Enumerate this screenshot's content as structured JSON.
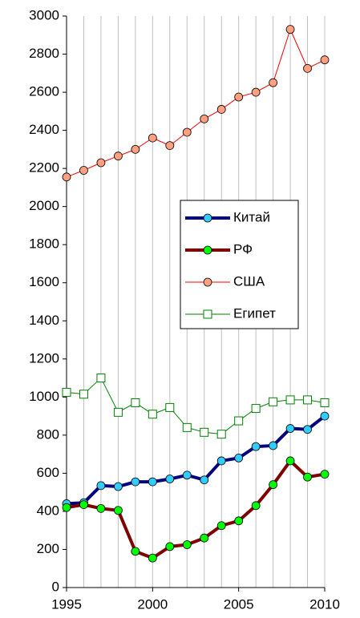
{
  "chart_data": {
    "type": "line",
    "x": [
      1995,
      1996,
      1997,
      1998,
      1999,
      2000,
      2001,
      2002,
      2003,
      2004,
      2005,
      2006,
      2007,
      2008,
      2009,
      2010
    ],
    "xlim": [
      1995,
      2010
    ],
    "xticks": [
      1995,
      2000,
      2005,
      2010
    ],
    "ylim": [
      0,
      3000
    ],
    "yticks": [
      0,
      200,
      400,
      600,
      800,
      1000,
      1200,
      1400,
      1600,
      1800,
      2000,
      2200,
      2400,
      2600,
      2800,
      3000
    ],
    "xgrid": true,
    "legend": "center",
    "series": [
      {
        "name": "Китай",
        "color": "#000080",
        "marker": "circle",
        "marker_color": "#33ccff",
        "width": 4,
        "values": [
          440,
          445,
          535,
          530,
          555,
          555,
          570,
          590,
          565,
          665,
          680,
          740,
          745,
          835,
          830,
          900
        ]
      },
      {
        "name": "РФ",
        "color": "#800000",
        "marker": "circle",
        "marker_color": "#00ff00",
        "width": 4,
        "values": [
          420,
          435,
          415,
          405,
          190,
          155,
          215,
          225,
          260,
          325,
          350,
          430,
          540,
          665,
          580,
          595
        ]
      },
      {
        "name": "США",
        "color": "#ff0000",
        "marker": "circle",
        "marker_color": "#ffa080",
        "width": 1,
        "values": [
          2155,
          2190,
          2230,
          2265,
          2300,
          2360,
          2320,
          2390,
          2460,
          2510,
          2575,
          2600,
          2650,
          2930,
          2725,
          2770
        ]
      },
      {
        "name": "Египет",
        "color": "#008000",
        "marker": "square",
        "marker_color": "#ffffff",
        "width": 1,
        "values": [
          1025,
          1015,
          1100,
          920,
          970,
          910,
          945,
          840,
          815,
          805,
          875,
          940,
          975,
          985,
          985,
          970
        ]
      }
    ]
  }
}
